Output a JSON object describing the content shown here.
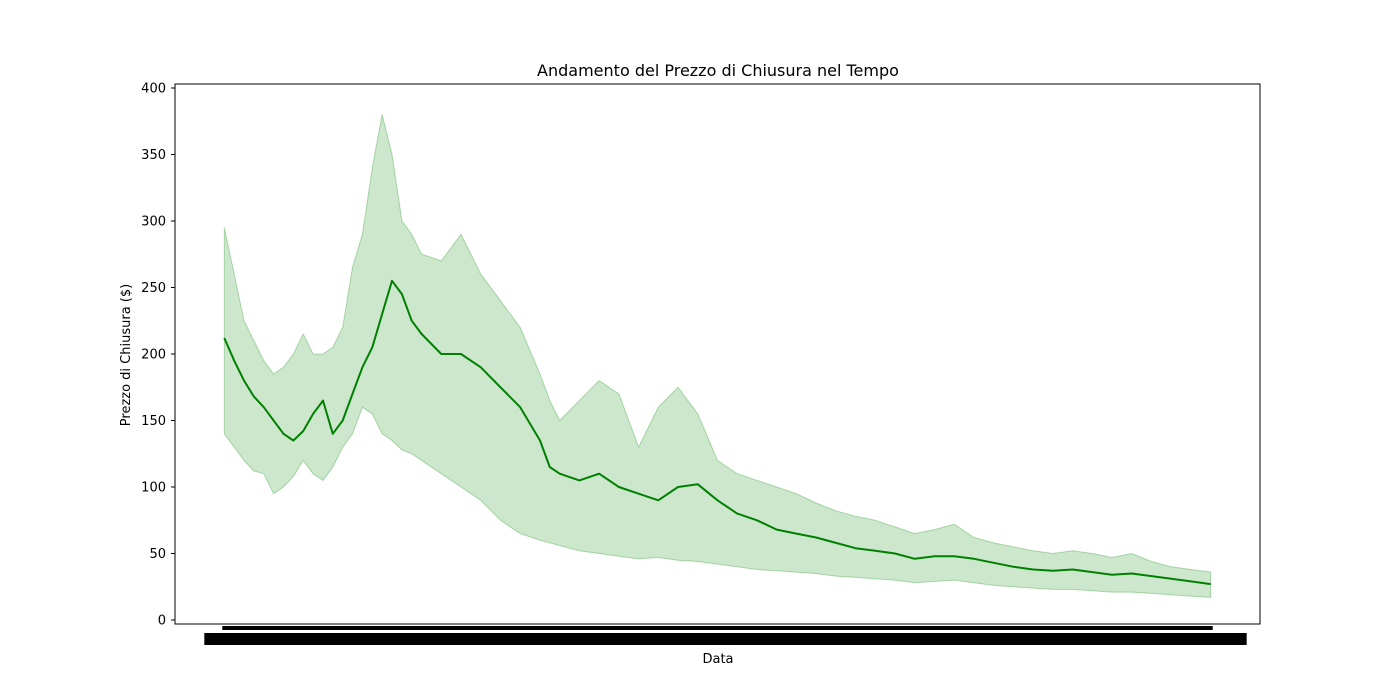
{
  "chart_data": {
    "type": "area",
    "title": "Andamento del Prezzo di Chiusura nel Tempo",
    "xlabel": "Data",
    "ylabel": "Prezzo di Chiusura ($)",
    "ylim": [
      -3,
      403
    ],
    "yticks": [
      0,
      50,
      100,
      150,
      200,
      250,
      300,
      350,
      400
    ],
    "xlim": [
      -0.05,
      1.05
    ],
    "x_tick_labels_note": "overlapping date labels, unreadable",
    "grid": false,
    "colors": {
      "line": "#008000",
      "band": "#2e9a2e",
      "axes": "#000000"
    },
    "x": [
      0,
      0.01,
      0.02,
      0.03,
      0.04,
      0.05,
      0.06,
      0.07,
      0.08,
      0.09,
      0.1,
      0.11,
      0.12,
      0.13,
      0.14,
      0.15,
      0.16,
      0.17,
      0.18,
      0.19,
      0.2,
      0.22,
      0.24,
      0.26,
      0.28,
      0.3,
      0.32,
      0.33,
      0.34,
      0.36,
      0.38,
      0.4,
      0.42,
      0.44,
      0.46,
      0.48,
      0.5,
      0.52,
      0.54,
      0.56,
      0.58,
      0.6,
      0.62,
      0.64,
      0.66,
      0.68,
      0.7,
      0.72,
      0.74,
      0.76,
      0.78,
      0.8,
      0.82,
      0.84,
      0.86,
      0.88,
      0.9,
      0.92,
      0.94,
      0.96,
      0.98,
      1.0
    ],
    "series": [
      {
        "role": "close",
        "values": [
          212,
          195,
          180,
          168,
          160,
          150,
          140,
          135,
          142,
          155,
          165,
          140,
          150,
          170,
          190,
          205,
          230,
          255,
          245,
          225,
          215,
          200,
          200,
          190,
          175,
          160,
          135,
          115,
          110,
          105,
          110,
          100,
          95,
          90,
          100,
          102,
          90,
          80,
          75,
          68,
          65,
          62,
          58,
          54,
          52,
          50,
          46,
          48,
          48,
          46,
          43,
          40,
          38,
          37,
          38,
          36,
          34,
          35,
          33,
          31,
          29,
          27
        ]
      },
      {
        "role": "band-upper",
        "values": [
          295,
          260,
          225,
          210,
          195,
          185,
          190,
          200,
          215,
          200,
          200,
          205,
          220,
          265,
          290,
          340,
          380,
          350,
          300,
          290,
          275,
          270,
          290,
          260,
          240,
          220,
          185,
          165,
          150,
          165,
          180,
          170,
          130,
          160,
          175,
          155,
          120,
          110,
          105,
          100,
          95,
          88,
          82,
          78,
          75,
          70,
          65,
          68,
          72,
          62,
          58,
          55,
          52,
          50,
          52,
          50,
          47,
          50,
          44,
          40,
          38,
          36
        ]
      },
      {
        "role": "band-lower",
        "values": [
          140,
          130,
          120,
          112,
          110,
          95,
          100,
          108,
          120,
          110,
          105,
          115,
          130,
          140,
          160,
          155,
          140,
          135,
          128,
          125,
          120,
          110,
          100,
          90,
          75,
          65,
          60,
          58,
          56,
          52,
          50,
          48,
          46,
          47,
          45,
          44,
          42,
          40,
          38,
          37,
          36,
          35,
          33,
          32,
          31,
          30,
          28,
          29,
          30,
          28,
          26,
          25,
          24,
          23,
          23,
          22,
          21,
          21,
          20,
          19,
          18,
          17
        ]
      }
    ]
  }
}
